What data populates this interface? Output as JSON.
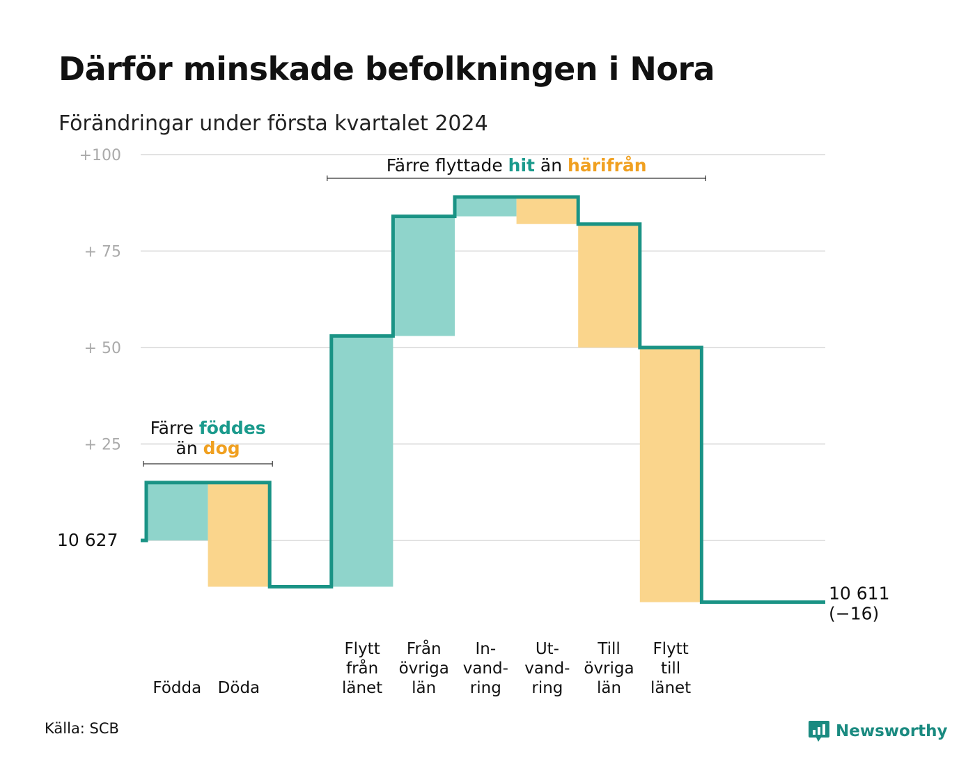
{
  "title": "Därför minskade befolkningen i Nora",
  "subtitle": "Förändringar under första kvartalet 2024",
  "source": "Källa: SCB",
  "brand": "Newsworthy",
  "colors": {
    "increase": "#8fd4cb",
    "decrease": "#fad58c",
    "line": "#1a9385",
    "grid": "#e2e2e2"
  },
  "chart_data": {
    "type": "waterfall",
    "start_value": 10627,
    "start_label": "10 627",
    "end_value": 10611,
    "end_label": "10 611",
    "end_change_label": "(−16)",
    "yticks": [
      {
        "offset": 100,
        "label": "+100"
      },
      {
        "offset": 75,
        "label": "+  75"
      },
      {
        "offset": 50,
        "label": "+  50"
      },
      {
        "offset": 25,
        "label": "+  25"
      },
      {
        "offset": 0,
        "label": ""
      }
    ],
    "ylim": [
      -20,
      100
    ],
    "steps": [
      {
        "label": [
          "Födda"
        ],
        "value": 15,
        "direction": "increase"
      },
      {
        "label": [
          "Döda"
        ],
        "value": -27,
        "direction": "decrease"
      },
      {
        "label": [],
        "value": 0,
        "direction": "none"
      },
      {
        "label": [
          "Flytt",
          "från",
          "länet"
        ],
        "value": 65,
        "direction": "increase"
      },
      {
        "label": [
          "Från",
          "övriga",
          "län"
        ],
        "value": 31,
        "direction": "increase"
      },
      {
        "label": [
          "In-",
          "vand-",
          "ring"
        ],
        "value": 5,
        "direction": "increase"
      },
      {
        "label": [
          "Ut-",
          "vand-",
          "ring"
        ],
        "value": -7,
        "direction": "decrease"
      },
      {
        "label": [
          "Till",
          "övriga",
          "län"
        ],
        "value": -32,
        "direction": "decrease"
      },
      {
        "label": [
          "Flytt",
          "till",
          "länet"
        ],
        "value": -66,
        "direction": "decrease"
      },
      {
        "label": [],
        "value": 0,
        "direction": "none"
      }
    ],
    "annotations": [
      {
        "id": "births",
        "line1": [
          {
            "text": "Färre ",
            "style": "plain"
          },
          {
            "text": "föddes",
            "style": "teal"
          }
        ],
        "line2": [
          {
            "text": "än ",
            "style": "plain"
          },
          {
            "text": "dog",
            "style": "orange"
          }
        ]
      },
      {
        "id": "moves",
        "line1": [
          {
            "text": "Färre flyttade ",
            "style": "plain"
          },
          {
            "text": "hit",
            "style": "teal"
          },
          {
            "text": " än ",
            "style": "plain"
          },
          {
            "text": "härifrån",
            "style": "orange"
          }
        ]
      }
    ]
  }
}
